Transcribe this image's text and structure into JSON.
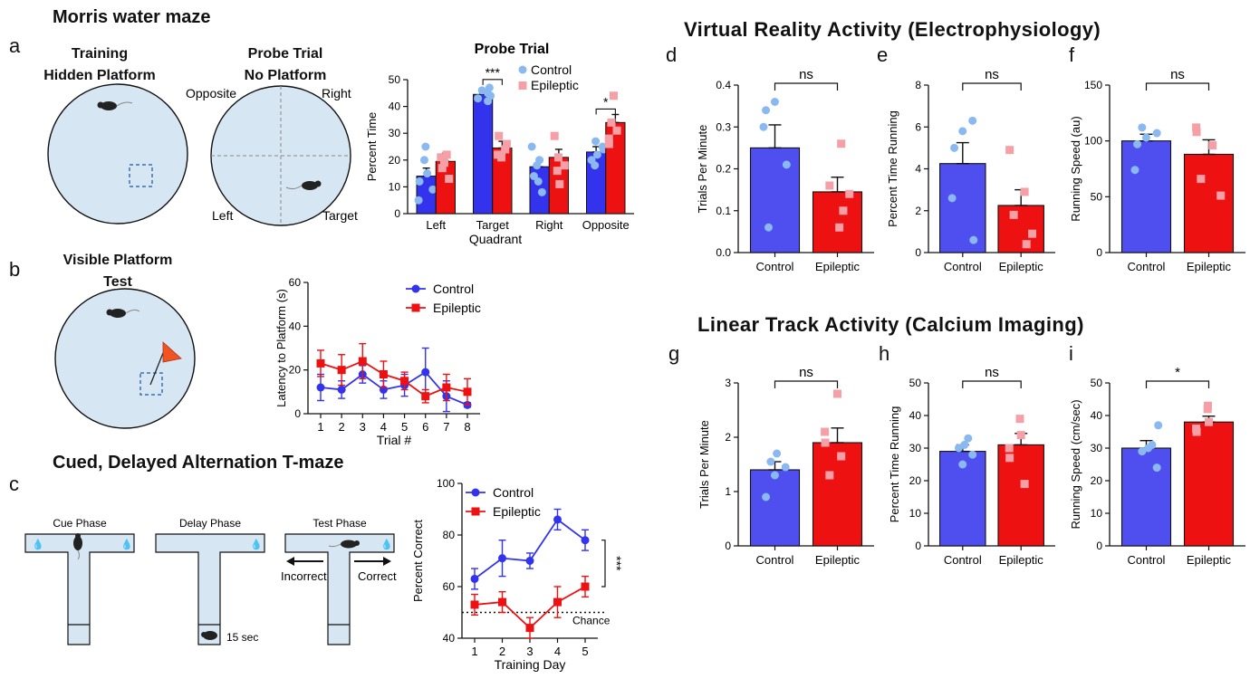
{
  "titles": {
    "morris": "Morris water maze",
    "tmaze": "Cued, Delayed Alternation T-maze",
    "vr": "Virtual Reality Activity (Electrophysiology)",
    "linear": "Linear Track Activity (Calcium Imaging)"
  },
  "panel_letters": [
    "a",
    "b",
    "c",
    "d",
    "e",
    "f",
    "g",
    "h",
    "i"
  ],
  "diagram": {
    "training_l1": "Training",
    "training_l2": "Hidden Platform",
    "probe_l1": "Probe Trial",
    "probe_l2": "No Platform",
    "opposite": "Opposite",
    "right": "Right",
    "left": "Left",
    "target": "Target",
    "visible_l1": "Visible Platform",
    "visible_l2": "Test",
    "cue_phase": "Cue Phase",
    "delay_phase": "Delay Phase",
    "test_phase": "Test Phase",
    "incorrect": "Incorrect",
    "correct": "Correct",
    "delay_time": "15 sec"
  },
  "colors": {
    "control": "#3333ee",
    "epileptic": "#ee1111",
    "control_bar": "#4f4ff0",
    "control_point": "#8ab8f0",
    "epileptic_point": "#f5a0a6",
    "maze_fill": "#d7e6f3",
    "platform": "#3a6fb5",
    "flag": "#ee5522"
  },
  "chart_data": [
    {
      "id": "a",
      "type": "bar",
      "title": "Probe Trial",
      "xlabel": "Quadrant",
      "ylabel": "Percent Time",
      "categories": [
        "Left",
        "Target",
        "Right",
        "Opposite"
      ],
      "ylim": [
        0,
        50
      ],
      "yticks": [
        0,
        10,
        20,
        30,
        40,
        50
      ],
      "legend_position": "top-right",
      "series": [
        {
          "name": "Control",
          "values": [
            14,
            44.5,
            17.5,
            23
          ],
          "errors": [
            3,
            1.5,
            3,
            2
          ],
          "points": [
            [
              5,
              9,
              12,
              15,
              20,
              25
            ],
            [
              42,
              43,
              44,
              45,
              46,
              47
            ],
            [
              8,
              12,
              14,
              18,
              20,
              25
            ],
            [
              18,
              20,
              22,
              24,
              25,
              27
            ]
          ]
        },
        {
          "name": "Epileptic",
          "values": [
            19.5,
            24.5,
            21,
            34
          ],
          "errors": [
            3,
            2.5,
            3,
            3
          ],
          "points": [
            [
              13,
              17,
              19,
              21,
              22
            ],
            [
              21,
              22,
              24,
              26,
              29
            ],
            [
              11,
              16,
              18,
              21,
              29
            ],
            [
              26,
              28,
              31,
              34,
              44
            ]
          ]
        }
      ],
      "annotations": [
        {
          "category": "Target",
          "text": "***"
        },
        {
          "category": "Opposite",
          "text": "*"
        }
      ]
    },
    {
      "id": "b",
      "type": "line",
      "xlabel": "Trial #",
      "ylabel": "Latency to Platform (s)",
      "x": [
        1,
        2,
        3,
        4,
        5,
        6,
        7,
        8
      ],
      "ylim": [
        0,
        60
      ],
      "yticks": [
        0,
        20,
        40,
        60
      ],
      "legend_position": "top-right",
      "series": [
        {
          "name": "Control",
          "values": [
            12,
            11,
            18,
            11,
            13,
            19,
            8,
            4
          ],
          "errors": [
            6,
            4,
            4,
            4,
            5,
            11,
            7,
            1
          ]
        },
        {
          "name": "Epileptic",
          "values": [
            23,
            20,
            24,
            18,
            15,
            8,
            12,
            10
          ],
          "errors": [
            6,
            7,
            8,
            6,
            4,
            3,
            6,
            6
          ]
        }
      ]
    },
    {
      "id": "c",
      "type": "line",
      "xlabel": "Training Day",
      "ylabel": "Percent Correct",
      "x": [
        1,
        2,
        3,
        4,
        5
      ],
      "ylim": [
        40,
        100
      ],
      "yticks": [
        40,
        60,
        80,
        100
      ],
      "legend_position": "top-left",
      "series": [
        {
          "name": "Control",
          "values": [
            63,
            71,
            70,
            86,
            78
          ],
          "errors": [
            4,
            7,
            3,
            4,
            4
          ]
        },
        {
          "name": "Epileptic",
          "values": [
            53,
            54,
            44,
            54,
            60
          ],
          "errors": [
            4,
            4,
            4,
            6,
            4
          ]
        }
      ],
      "reference_line": {
        "y": 50,
        "label": "Chance"
      },
      "annotations": [
        {
          "text": "***"
        }
      ]
    },
    {
      "id": "d",
      "type": "bar",
      "ylabel": "Trials Per Minute",
      "categories": [
        "Control",
        "Epileptic"
      ],
      "values": [
        0.25,
        0.145
      ],
      "errors": [
        0.055,
        0.035
      ],
      "points": [
        [
          0.06,
          0.21,
          0.3,
          0.34,
          0.36
        ],
        [
          0.06,
          0.1,
          0.14,
          0.16,
          0.26
        ]
      ],
      "ylim": [
        0,
        0.4
      ],
      "yticks": [
        0,
        0.1,
        0.2,
        0.3,
        0.4
      ],
      "ytick_labels": [
        "0.0",
        "0.1",
        "0.2",
        "0.3",
        "0.4"
      ],
      "significance": "ns"
    },
    {
      "id": "e",
      "type": "bar",
      "ylabel": "Percent Time Running",
      "categories": [
        "Control",
        "Epileptic"
      ],
      "values": [
        4.25,
        2.25
      ],
      "errors": [
        1.0,
        0.75
      ],
      "points": [
        [
          0.6,
          2.6,
          5.0,
          5.8,
          6.3
        ],
        [
          0.4,
          0.9,
          1.8,
          2.9,
          4.9
        ]
      ],
      "ylim": [
        0,
        8
      ],
      "yticks": [
        0,
        2,
        4,
        6,
        8
      ],
      "ytick_labels": [
        "0",
        "2",
        "4",
        "6",
        "8"
      ],
      "significance": "ns"
    },
    {
      "id": "f",
      "type": "bar",
      "ylabel": "Running Speed (au)",
      "categories": [
        "Control",
        "Epileptic"
      ],
      "values": [
        100,
        88
      ],
      "errors": [
        6,
        13
      ],
      "points": [
        [
          74,
          97,
          103,
          107,
          112
        ],
        [
          51,
          66,
          96,
          108,
          112
        ]
      ],
      "ylim": [
        0,
        150
      ],
      "yticks": [
        0,
        50,
        100,
        150
      ],
      "ytick_labels": [
        "0",
        "50",
        "100",
        "150"
      ],
      "significance": "ns"
    },
    {
      "id": "g",
      "type": "bar",
      "ylabel": "Trials Per Minute",
      "categories": [
        "Control",
        "Epileptic"
      ],
      "values": [
        1.4,
        1.9
      ],
      "errors": [
        0.15,
        0.27
      ],
      "points": [
        [
          0.9,
          1.3,
          1.45,
          1.55,
          1.7
        ],
        [
          1.3,
          1.65,
          1.9,
          2.1,
          2.8
        ]
      ],
      "ylim": [
        0,
        3
      ],
      "yticks": [
        0,
        1,
        2,
        3
      ],
      "ytick_labels": [
        "0",
        "1",
        "2",
        "3"
      ],
      "significance": "ns"
    },
    {
      "id": "h",
      "type": "bar",
      "ylabel": "Percent Time Running",
      "categories": [
        "Control",
        "Epileptic"
      ],
      "values": [
        29,
        31
      ],
      "errors": [
        2,
        3.5
      ],
      "points": [
        [
          25,
          28,
          30,
          31,
          33
        ],
        [
          19,
          27,
          30,
          34,
          39
        ]
      ],
      "ylim": [
        0,
        50
      ],
      "yticks": [
        0,
        10,
        20,
        30,
        40,
        50
      ],
      "ytick_labels": [
        "0",
        "10",
        "20",
        "30",
        "40",
        "50"
      ],
      "significance": "ns"
    },
    {
      "id": "i",
      "type": "bar",
      "ylabel": "Running Speed (cm/sec)",
      "categories": [
        "Control",
        "Epileptic"
      ],
      "values": [
        30,
        38
      ],
      "errors": [
        2.3,
        1.8
      ],
      "points": [
        [
          24,
          29,
          30,
          31,
          37
        ],
        [
          35,
          36,
          38,
          42,
          43
        ]
      ],
      "ylim": [
        0,
        50
      ],
      "yticks": [
        0,
        10,
        20,
        30,
        40,
        50
      ],
      "ytick_labels": [
        "0",
        "10",
        "20",
        "30",
        "40",
        "50"
      ],
      "significance": "*"
    }
  ]
}
